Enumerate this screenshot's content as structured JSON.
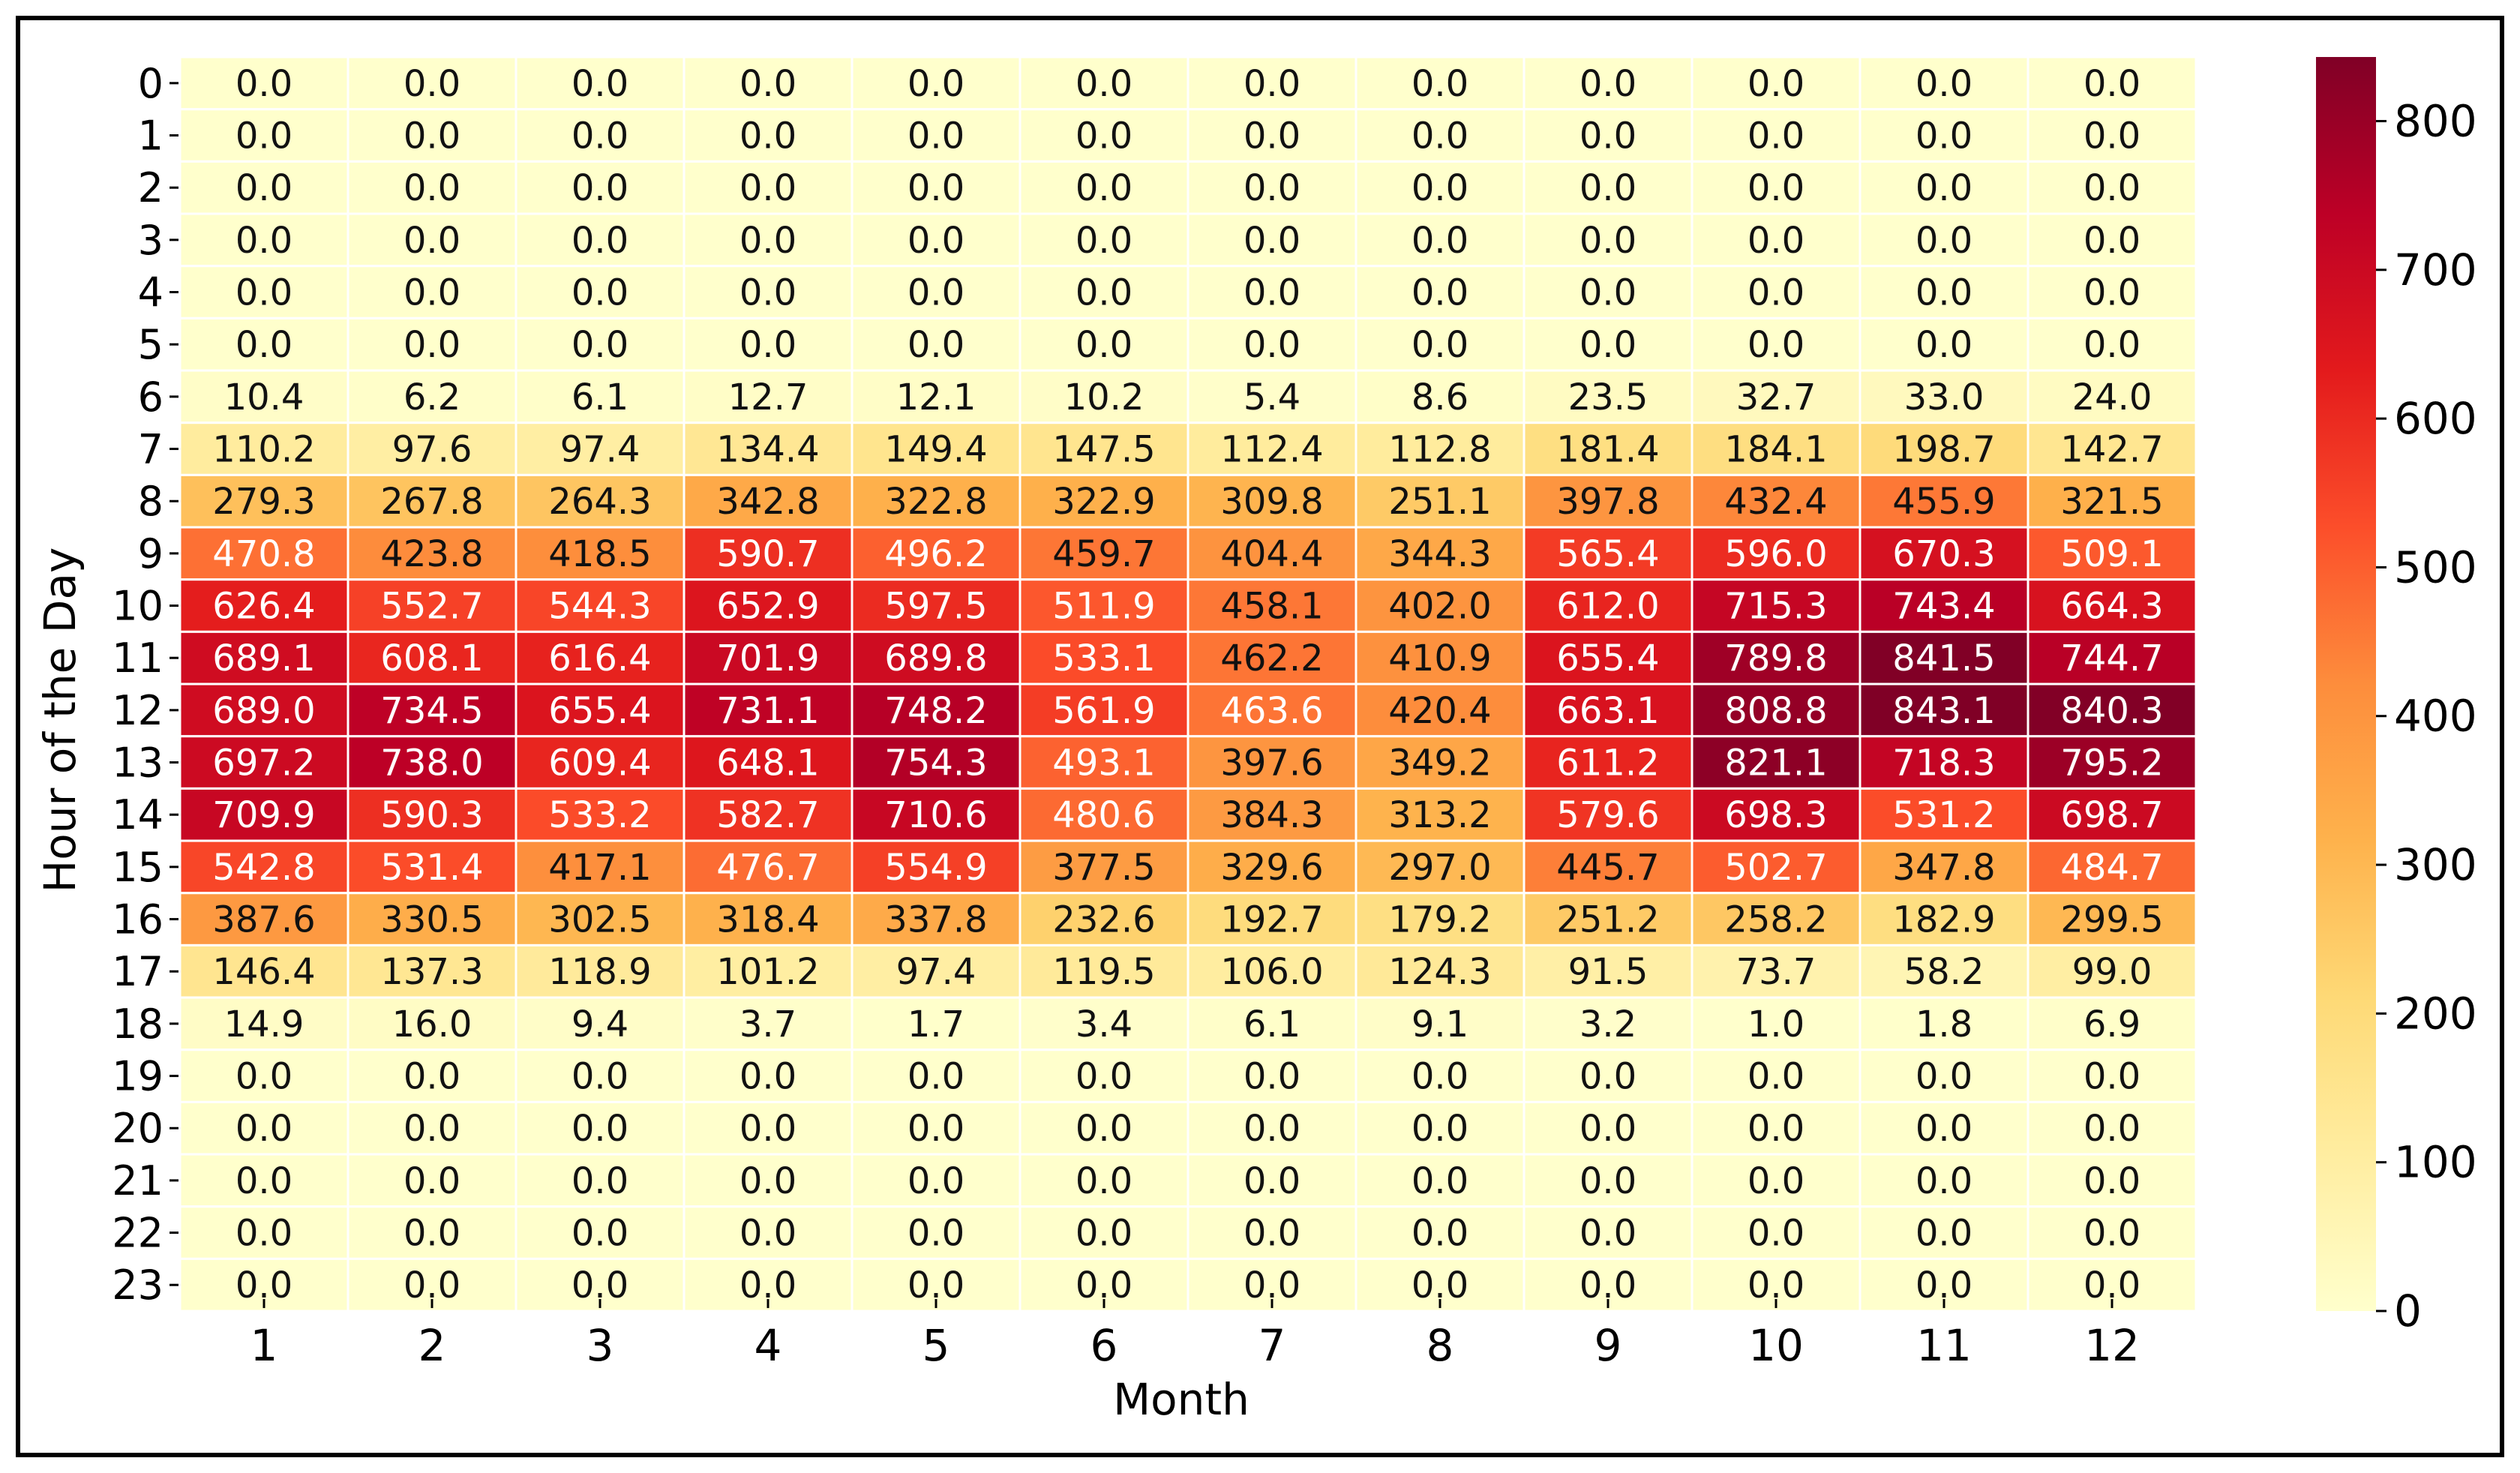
{
  "chart_data": {
    "type": "heatmap",
    "title": "",
    "xlabel": "Month",
    "ylabel": "Hour of the Day",
    "x_categories": [
      "1",
      "2",
      "3",
      "4",
      "5",
      "6",
      "7",
      "8",
      "9",
      "10",
      "11",
      "12"
    ],
    "y_categories": [
      "0",
      "1",
      "2",
      "3",
      "4",
      "5",
      "6",
      "7",
      "8",
      "9",
      "10",
      "11",
      "12",
      "13",
      "14",
      "15",
      "16",
      "17",
      "18",
      "19",
      "20",
      "21",
      "22",
      "23"
    ],
    "values": [
      [
        0.0,
        0.0,
        0.0,
        0.0,
        0.0,
        0.0,
        0.0,
        0.0,
        0.0,
        0.0,
        0.0,
        0.0
      ],
      [
        0.0,
        0.0,
        0.0,
        0.0,
        0.0,
        0.0,
        0.0,
        0.0,
        0.0,
        0.0,
        0.0,
        0.0
      ],
      [
        0.0,
        0.0,
        0.0,
        0.0,
        0.0,
        0.0,
        0.0,
        0.0,
        0.0,
        0.0,
        0.0,
        0.0
      ],
      [
        0.0,
        0.0,
        0.0,
        0.0,
        0.0,
        0.0,
        0.0,
        0.0,
        0.0,
        0.0,
        0.0,
        0.0
      ],
      [
        0.0,
        0.0,
        0.0,
        0.0,
        0.0,
        0.0,
        0.0,
        0.0,
        0.0,
        0.0,
        0.0,
        0.0
      ],
      [
        0.0,
        0.0,
        0.0,
        0.0,
        0.0,
        0.0,
        0.0,
        0.0,
        0.0,
        0.0,
        0.0,
        0.0
      ],
      [
        10.4,
        6.2,
        6.1,
        12.7,
        12.1,
        10.2,
        5.4,
        8.6,
        23.5,
        32.7,
        33.0,
        24.0
      ],
      [
        110.2,
        97.6,
        97.4,
        134.4,
        149.4,
        147.5,
        112.4,
        112.8,
        181.4,
        184.1,
        198.7,
        142.7
      ],
      [
        279.3,
        267.8,
        264.3,
        342.8,
        322.8,
        322.9,
        309.8,
        251.1,
        397.8,
        432.4,
        455.9,
        321.5
      ],
      [
        470.8,
        423.8,
        418.5,
        590.7,
        496.2,
        459.7,
        404.4,
        344.3,
        565.4,
        596.0,
        670.3,
        509.1
      ],
      [
        626.4,
        552.7,
        544.3,
        652.9,
        597.5,
        511.9,
        458.1,
        402.0,
        612.0,
        715.3,
        743.4,
        664.3
      ],
      [
        689.1,
        608.1,
        616.4,
        701.9,
        689.8,
        533.1,
        462.2,
        410.9,
        655.4,
        789.8,
        841.5,
        744.7
      ],
      [
        689.0,
        734.5,
        655.4,
        731.1,
        748.2,
        561.9,
        463.6,
        420.4,
        663.1,
        808.8,
        843.1,
        840.3
      ],
      [
        697.2,
        738.0,
        609.4,
        648.1,
        754.3,
        493.1,
        397.6,
        349.2,
        611.2,
        821.1,
        718.3,
        795.2
      ],
      [
        709.9,
        590.3,
        533.2,
        582.7,
        710.6,
        480.6,
        384.3,
        313.2,
        579.6,
        698.3,
        531.2,
        698.7
      ],
      [
        542.8,
        531.4,
        417.1,
        476.7,
        554.9,
        377.5,
        329.6,
        297.0,
        445.7,
        502.7,
        347.8,
        484.7
      ],
      [
        387.6,
        330.5,
        302.5,
        318.4,
        337.8,
        232.6,
        192.7,
        179.2,
        251.2,
        258.2,
        182.9,
        299.5
      ],
      [
        146.4,
        137.3,
        118.9,
        101.2,
        97.4,
        119.5,
        106.0,
        124.3,
        91.5,
        73.7,
        58.2,
        99.0
      ],
      [
        14.9,
        16.0,
        9.4,
        3.7,
        1.7,
        3.4,
        6.1,
        9.1,
        3.2,
        1.0,
        1.8,
        6.9
      ],
      [
        0.0,
        0.0,
        0.0,
        0.0,
        0.0,
        0.0,
        0.0,
        0.0,
        0.0,
        0.0,
        0.0,
        0.0
      ],
      [
        0.0,
        0.0,
        0.0,
        0.0,
        0.0,
        0.0,
        0.0,
        0.0,
        0.0,
        0.0,
        0.0,
        0.0
      ],
      [
        0.0,
        0.0,
        0.0,
        0.0,
        0.0,
        0.0,
        0.0,
        0.0,
        0.0,
        0.0,
        0.0,
        0.0
      ],
      [
        0.0,
        0.0,
        0.0,
        0.0,
        0.0,
        0.0,
        0.0,
        0.0,
        0.0,
        0.0,
        0.0,
        0.0
      ],
      [
        0.0,
        0.0,
        0.0,
        0.0,
        0.0,
        0.0,
        0.0,
        0.0,
        0.0,
        0.0,
        0.0,
        0.0
      ]
    ],
    "value_format": "0.0",
    "colormap": "YlOrRd",
    "color_range": [
      0,
      843.1
    ],
    "colorbar_ticks": [
      0,
      100,
      200,
      300,
      400,
      500,
      600,
      700,
      800
    ],
    "colorbar_stops": [
      "#ffffcc",
      "#ffeda0",
      "#fed976",
      "#feb24c",
      "#fd8d3c",
      "#fc4e2a",
      "#e31a1c",
      "#bd0026",
      "#800026"
    ],
    "grid": false,
    "legend": "colorbar-right"
  }
}
